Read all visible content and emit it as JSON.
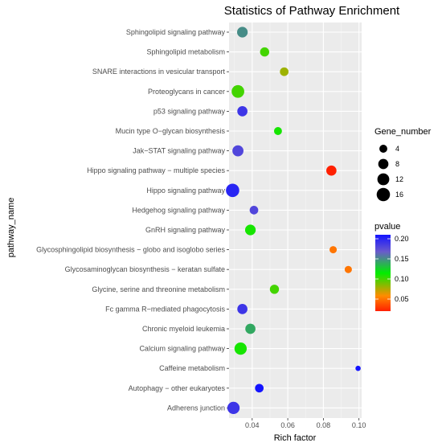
{
  "chart_data": {
    "type": "scatter",
    "title": "Statistics of Pathway Enrichment",
    "xlabel": "Rich factor",
    "ylabel": "pathway_name",
    "xlim": [
      0.027,
      0.1015
    ],
    "x_ticks": [
      0.04,
      0.06,
      0.08,
      0.1
    ],
    "x_tick_labels": [
      "0.04",
      "0.06",
      "0.08",
      "0.10"
    ],
    "grid": true,
    "categories": [
      "Sphingolipid signaling pathway",
      "Sphingolipid metabolism",
      "SNARE interactions in vesicular transport",
      "Proteoglycans in cancer",
      "p53 signaling pathway",
      "Mucin type O−glycan biosynthesis",
      "Jak−STAT signaling pathway",
      "Hippo signaling pathway − multiple species",
      "Hippo signaling pathway",
      "Hedgehog signaling pathway",
      "GnRH signaling pathway",
      "Glycosphingolipid biosynthesis − globo and isoglobo series",
      "Glycosaminoglycan biosynthesis − keratan sulfate",
      "Glycine, serine and threonine metabolism",
      "Fc gamma R−mediated phagocytosis",
      "Chronic myeloid leukemia",
      "Calcium signaling pathway",
      "Caffeine metabolism",
      "Autophagy − other eukaryotes",
      "Adherens junction"
    ],
    "points": [
      {
        "pathway": "Sphingolipid signaling pathway",
        "rich_factor": 0.0345,
        "gene_number": 9,
        "pvalue": 0.15
      },
      {
        "pathway": "Sphingolipid metabolism",
        "rich_factor": 0.047,
        "gene_number": 6,
        "pvalue": 0.1
      },
      {
        "pathway": "SNARE interactions in vesicular transport",
        "rich_factor": 0.058,
        "gene_number": 5,
        "pvalue": 0.08
      },
      {
        "pathway": "Proteoglycans in cancer",
        "rich_factor": 0.032,
        "gene_number": 14,
        "pvalue": 0.1
      },
      {
        "pathway": "p53 signaling pathway",
        "rich_factor": 0.0345,
        "gene_number": 8,
        "pvalue": 0.19
      },
      {
        "pathway": "Mucin type O−glycan biosynthesis",
        "rich_factor": 0.0545,
        "gene_number": 4,
        "pvalue": 0.11
      },
      {
        "pathway": "Jak−STAT signaling pathway",
        "rich_factor": 0.032,
        "gene_number": 10,
        "pvalue": 0.18
      },
      {
        "pathway": "Hippo signaling pathway − multiple species",
        "rich_factor": 0.0845,
        "gene_number": 8,
        "pvalue": 0.02
      },
      {
        "pathway": "Hippo signaling pathway",
        "rich_factor": 0.029,
        "gene_number": 16,
        "pvalue": 0.2
      },
      {
        "pathway": "Hedgehog signaling pathway",
        "rich_factor": 0.041,
        "gene_number": 5,
        "pvalue": 0.18
      },
      {
        "pathway": "GnRH signaling pathway",
        "rich_factor": 0.039,
        "gene_number": 9,
        "pvalue": 0.11
      },
      {
        "pathway": "Glycosphingolipid biosynthesis − globo and isoglobo series",
        "rich_factor": 0.0855,
        "gene_number": 3,
        "pvalue": 0.05
      },
      {
        "pathway": "Glycosaminoglycan biosynthesis − keratan sulfate",
        "rich_factor": 0.094,
        "gene_number": 3,
        "pvalue": 0.05
      },
      {
        "pathway": "Glycine, serine and threonine metabolism",
        "rich_factor": 0.0525,
        "gene_number": 6,
        "pvalue": 0.1
      },
      {
        "pathway": "Fc gamma R−mediated phagocytosis",
        "rich_factor": 0.0345,
        "gene_number": 8,
        "pvalue": 0.19
      },
      {
        "pathway": "Chronic myeloid leukemia",
        "rich_factor": 0.039,
        "gene_number": 8,
        "pvalue": 0.14
      },
      {
        "pathway": "Calcium signaling pathway",
        "rich_factor": 0.0335,
        "gene_number": 13,
        "pvalue": 0.11
      },
      {
        "pathway": "Caffeine metabolism",
        "rich_factor": 0.0995,
        "gene_number": 1,
        "pvalue": 0.21
      },
      {
        "pathway": "Autophagy − other eukaryotes",
        "rich_factor": 0.044,
        "gene_number": 5,
        "pvalue": 0.21
      },
      {
        "pathway": "Adherens junction",
        "rich_factor": 0.0295,
        "gene_number": 13,
        "pvalue": 0.19
      }
    ],
    "legend_size": {
      "title": "Gene_number",
      "values": [
        4,
        8,
        12,
        16
      ],
      "labels": [
        "4",
        "8",
        "12",
        "16"
      ]
    },
    "legend_color": {
      "title": "pvalue",
      "range": [
        0.02,
        0.21
      ],
      "ticks": [
        0.05,
        0.1,
        0.15,
        0.2
      ],
      "tick_labels": [
        "0.05",
        "0.10",
        "0.15",
        "0.20"
      ],
      "colors": [
        "#ff2000",
        "#ff8c00",
        "#00ee00",
        "#6a5acd",
        "#1414ff"
      ]
    },
    "panel_background": "#ebebeb",
    "grid_color": "#ffffff",
    "legend_placement": "right"
  }
}
